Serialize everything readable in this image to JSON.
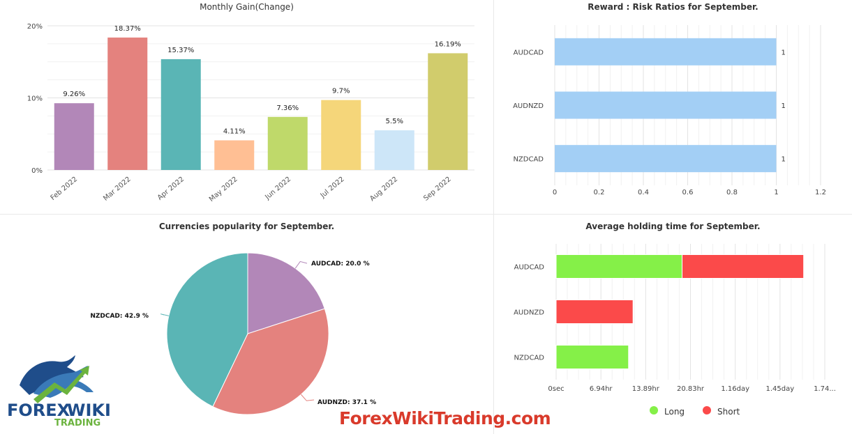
{
  "chart_data": [
    {
      "type": "bar",
      "title": "Monthly Gain(Change)",
      "categories": [
        "Feb 2022",
        "Mar 2022",
        "Apr 2022",
        "May 2022",
        "Jun 2022",
        "Jul 2022",
        "Aug 2022",
        "Sep 2022"
      ],
      "values": [
        9.26,
        18.37,
        15.37,
        4.11,
        7.36,
        9.7,
        5.5,
        16.19
      ],
      "value_labels": [
        "9.26%",
        "18.37%",
        "15.37%",
        "4.11%",
        "7.36%",
        "9.7%",
        "5.5%",
        "16.19%"
      ],
      "colors": [
        "#b287b8",
        "#e4827e",
        "#5ab5b5",
        "#ffbf94",
        "#bfd96a",
        "#f5d67a",
        "#cde6f8",
        "#d1cc6c"
      ],
      "yticks": [
        "0%",
        "10%",
        "20%"
      ],
      "ylim": [
        0,
        20
      ]
    },
    {
      "type": "bar",
      "orientation": "horizontal",
      "title": "Reward : Risk Ratios for September.",
      "categories": [
        "AUDCAD",
        "AUDNZD",
        "NZDCAD"
      ],
      "values": [
        1,
        1,
        1
      ],
      "value_labels": [
        "1",
        "1",
        "1"
      ],
      "color": "#a3cff5",
      "xticks": [
        "0",
        "0.2",
        "0.4",
        "0.6",
        "0.8",
        "1",
        "1.2"
      ],
      "xlim": [
        0,
        1.2
      ]
    },
    {
      "type": "pie",
      "title": "Currencies popularity for September.",
      "slices": [
        {
          "label": "AUDCAD: 20.0 %",
          "value": 20.0,
          "color": "#b287b8"
        },
        {
          "label": "AUDNZD: 37.1 %",
          "value": 37.1,
          "color": "#e4827e"
        },
        {
          "label": "NZDCAD: 42.9 %",
          "value": 42.9,
          "color": "#5ab5b5"
        }
      ]
    },
    {
      "type": "bar",
      "orientation": "horizontal",
      "stacked": true,
      "title": "Average holding time for September.",
      "categories": [
        "AUDCAD",
        "AUDNZD",
        "NZDCAD"
      ],
      "series": [
        {
          "name": "Long",
          "values": [
            0.816,
            0,
            0.469
          ],
          "color": "#85f048"
        },
        {
          "name": "Short",
          "values": [
            0.787,
            0.498,
            0
          ],
          "color": "#fb4a4a"
        }
      ],
      "xticks": [
        "0sec",
        "6.94hr",
        "13.89hr",
        "20.83hr",
        "1.16day",
        "1.45day",
        "1.74..."
      ],
      "xlim": [
        0,
        1.74
      ],
      "x_unit": "day",
      "legend_position": "bottom"
    }
  ],
  "watermark": "ForexWikiTrading.com",
  "logo": {
    "line1": "FOREX",
    "line2": "WIKI",
    "line3": "TRADING"
  }
}
